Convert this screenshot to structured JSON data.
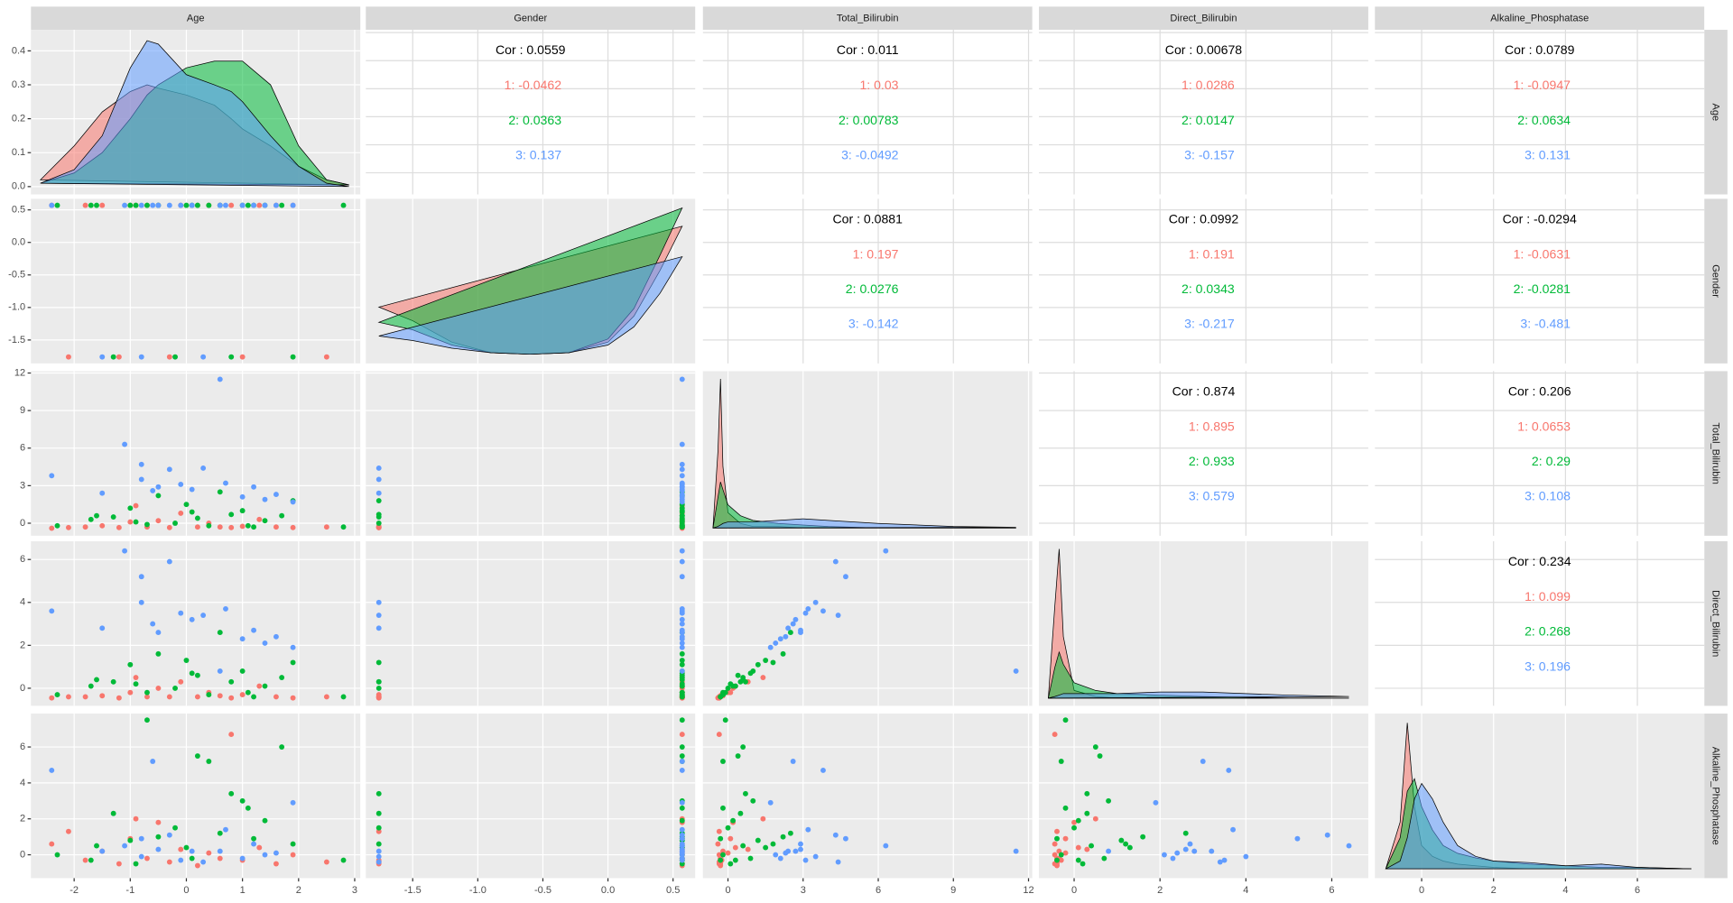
{
  "chart_data": {
    "type": "pairs",
    "variables": [
      {
        "name": "Age",
        "lim": [
          -2.77,
          3.1
        ],
        "ticks": [
          -2,
          -1,
          0,
          1,
          2,
          3
        ]
      },
      {
        "name": "Gender",
        "lim": [
          -1.86,
          0.67
        ],
        "ticks": [
          -1.5,
          {
            "value": -1,
            "label": "-1.0"
          },
          -0.5,
          {
            "value": 0,
            "label": "0.0"
          },
          0.5
        ]
      },
      {
        "name": "Total_Bilirubin",
        "lim": [
          -1.0,
          12.15
        ],
        "ticks": [
          0,
          3,
          6,
          9,
          12
        ]
      },
      {
        "name": "Direct_Bilirubin",
        "lim": [
          -0.82,
          6.85
        ],
        "ticks": [
          0,
          2,
          4,
          6
        ]
      },
      {
        "name": "Alkaline_Phosphatase",
        "lim": [
          -1.3,
          7.86
        ],
        "ticks": [
          0,
          2,
          4,
          6
        ]
      }
    ],
    "groups": [
      {
        "name": "1",
        "color": "#F8766D"
      },
      {
        "name": "2",
        "color": "#00BA38"
      },
      {
        "name": "3",
        "color": "#619CFF"
      }
    ],
    "densities": [
      {
        "x": [
          -2.6,
          -2,
          -1.5,
          -1,
          -0.7,
          -0.5,
          0,
          0.5,
          0.8,
          1,
          1.5,
          2,
          2.5,
          2.9
        ],
        "ylim": [
          -0.023,
          0.462
        ],
        "yticks": [
          {
            "value": 0,
            "label": "0.0"
          },
          0.1,
          0.2,
          0.3,
          0.4
        ],
        "series": [
          {
            "name": "1",
            "values": [
              0.02,
              0.12,
              0.22,
              0.28,
              0.3,
              0.29,
              0.27,
              0.24,
              0.2,
              0.17,
              0.12,
              0.06,
              0.02,
              0.005
            ]
          },
          {
            "name": "2",
            "values": [
              0.01,
              0.04,
              0.1,
              0.2,
              0.27,
              0.3,
              0.35,
              0.37,
              0.37,
              0.37,
              0.3,
              0.12,
              0.02,
              0.005
            ]
          },
          {
            "name": "3",
            "values": [
              0.01,
              0.05,
              0.15,
              0.35,
              0.43,
              0.42,
              0.33,
              0.3,
              0.28,
              0.25,
              0.15,
              0.06,
              0.01,
              0.0
            ]
          }
        ]
      },
      {
        "x": [
          -1.76,
          -1.5,
          -1.2,
          -0.9,
          -0.6,
          -0.3,
          0,
          0.2,
          0.4,
          0.57
        ],
        "ylim": [
          -0.06,
          1.02
        ],
        "series": [
          {
            "name": "1",
            "values": [
              0.31,
              0.22,
              0.08,
              0.01,
              0.0,
              0.01,
              0.08,
              0.25,
              0.55,
              0.84
            ]
          },
          {
            "name": "2",
            "values": [
              0.21,
              0.16,
              0.06,
              0.01,
              0.0,
              0.01,
              0.1,
              0.3,
              0.65,
              0.96
            ]
          },
          {
            "name": "3",
            "values": [
              0.12,
              0.09,
              0.04,
              0.01,
              0.0,
              0.01,
              0.06,
              0.18,
              0.4,
              0.64
            ]
          }
        ]
      },
      {
        "x": [
          -0.6,
          -0.4,
          -0.3,
          -0.2,
          0,
          0.5,
          1,
          2,
          3,
          4,
          6,
          9,
          11.5
        ],
        "ylim": [
          -0.05,
          1.02
        ],
        "series": [
          {
            "name": "1",
            "values": [
              0,
              0.5,
              0.97,
              0.4,
              0.1,
              0.03,
              0.01,
              0.01,
              0.0,
              0,
              0,
              0,
              0
            ]
          },
          {
            "name": "2",
            "values": [
              0,
              0.2,
              0.3,
              0.25,
              0.15,
              0.08,
              0.05,
              0.03,
              0.02,
              0.01,
              0,
              0,
              0
            ]
          },
          {
            "name": "3",
            "values": [
              0,
              0.01,
              0.02,
              0.03,
              0.04,
              0.04,
              0.04,
              0.05,
              0.06,
              0.05,
              0.03,
              0.01,
              0.005
            ]
          }
        ]
      },
      {
        "x": [
          -0.6,
          -0.45,
          -0.35,
          -0.25,
          0,
          0.5,
          1,
          2,
          3,
          4,
          5,
          6.4
        ],
        "ylim": [
          -0.05,
          1.02
        ],
        "series": [
          {
            "name": "1",
            "values": [
              0,
              0.6,
              0.97,
              0.4,
              0.05,
              0.01,
              0,
              0,
              0,
              0,
              0,
              0
            ]
          },
          {
            "name": "2",
            "values": [
              0,
              0.2,
              0.3,
              0.22,
              0.1,
              0.05,
              0.03,
              0.02,
              0.01,
              0.005,
              0,
              0
            ]
          },
          {
            "name": "3",
            "values": [
              0,
              0.01,
              0.02,
              0.03,
              0.03,
              0.03,
              0.03,
              0.04,
              0.04,
              0.03,
              0.02,
              0.01
            ]
          }
        ]
      },
      {
        "x": [
          -1.0,
          -0.6,
          -0.4,
          -0.2,
          0,
          0.3,
          0.6,
          1,
          1.5,
          2,
          3,
          4,
          5,
          6,
          7.5
        ],
        "ylim": [
          -0.06,
          1.0
        ],
        "series": [
          {
            "name": "1",
            "values": [
              0,
              0.3,
              0.94,
              0.4,
              0.15,
              0.08,
              0.05,
              0.03,
              0.02,
              0.01,
              0,
              0,
              0,
              0,
              0
            ]
          },
          {
            "name": "2",
            "values": [
              0,
              0.2,
              0.5,
              0.58,
              0.4,
              0.25,
              0.15,
              0.1,
              0.07,
              0.05,
              0.03,
              0.02,
              0.01,
              0.01,
              0
            ]
          },
          {
            "name": "3",
            "values": [
              0,
              0.05,
              0.2,
              0.45,
              0.55,
              0.45,
              0.3,
              0.15,
              0.08,
              0.05,
              0.04,
              0.02,
              0.03,
              0.01,
              0
            ]
          }
        ]
      }
    ],
    "correlations": [
      {
        "x": "Gender",
        "y": "Age",
        "overall": 0.0559,
        "overall_label": "Cor : 0.0559",
        "by_group": [
          -0.0462,
          0.0363,
          0.137
        ],
        "by_group_labels": [
          "1: -0.0462",
          "2: 0.0363",
          "3: 0.137"
        ]
      },
      {
        "x": "Total_Bilirubin",
        "y": "Age",
        "overall": 0.011,
        "overall_label": "Cor : 0.011",
        "by_group": [
          0.03,
          0.00783,
          -0.0492
        ],
        "by_group_labels": [
          "1: 0.03",
          "2: 0.00783",
          "3: -0.0492"
        ]
      },
      {
        "x": "Direct_Bilirubin",
        "y": "Age",
        "overall": 0.00678,
        "overall_label": "Cor : 0.00678",
        "by_group": [
          0.0286,
          0.0147,
          -0.157
        ],
        "by_group_labels": [
          "1: 0.0286",
          "2: 0.0147",
          "3: -0.157"
        ]
      },
      {
        "x": "Alkaline_Phosphatase",
        "y": "Age",
        "overall": 0.0789,
        "overall_label": "Cor : 0.0789",
        "by_group": [
          -0.0947,
          0.0634,
          0.131
        ],
        "by_group_labels": [
          "1: -0.0947",
          "2: 0.0634",
          "3: 0.131"
        ]
      },
      {
        "x": "Total_Bilirubin",
        "y": "Gender",
        "overall": 0.0881,
        "overall_label": "Cor : 0.0881",
        "by_group": [
          0.197,
          0.0276,
          -0.142
        ],
        "by_group_labels": [
          "1: 0.197",
          "2: 0.0276",
          "3: -0.142"
        ]
      },
      {
        "x": "Direct_Bilirubin",
        "y": "Gender",
        "overall": 0.0992,
        "overall_label": "Cor : 0.0992",
        "by_group": [
          0.191,
          0.0343,
          -0.217
        ],
        "by_group_labels": [
          "1: 0.191",
          "2: 0.0343",
          "3: -0.217"
        ]
      },
      {
        "x": "Alkaline_Phosphatase",
        "y": "Gender",
        "overall": -0.0294,
        "overall_label": "Cor : -0.0294",
        "by_group": [
          -0.0631,
          -0.0281,
          -0.481
        ],
        "by_group_labels": [
          "1: -0.0631",
          "2: -0.0281",
          "3: -0.481"
        ]
      },
      {
        "x": "Direct_Bilirubin",
        "y": "Total_Bilirubin",
        "overall": 0.874,
        "overall_label": "Cor : 0.874",
        "by_group": [
          0.895,
          0.933,
          0.579
        ],
        "by_group_labels": [
          "1: 0.895",
          "2: 0.933",
          "3: 0.579"
        ]
      },
      {
        "x": "Alkaline_Phosphatase",
        "y": "Total_Bilirubin",
        "overall": 0.206,
        "overall_label": "Cor : 0.206",
        "by_group": [
          0.0653,
          0.29,
          0.108
        ],
        "by_group_labels": [
          "1: 0.0653",
          "2: 0.29",
          "3: 0.108"
        ]
      },
      {
        "x": "Alkaline_Phosphatase",
        "y": "Direct_Bilirubin",
        "overall": 0.234,
        "overall_label": "Cor : 0.234",
        "by_group": [
          0.099,
          0.268,
          0.196
        ],
        "by_group_labels": [
          "1: 0.099",
          "2: 0.268",
          "3: 0.196"
        ]
      }
    ],
    "observations": {
      "group": [
        "1",
        "1",
        "1",
        "1",
        "1",
        "1",
        "1",
        "1",
        "1",
        "1",
        "1",
        "1",
        "1",
        "1",
        "1",
        "1",
        "1",
        "1",
        "1",
        "1",
        "2",
        "2",
        "2",
        "2",
        "2",
        "2",
        "2",
        "2",
        "2",
        "2",
        "2",
        "2",
        "2",
        "2",
        "2",
        "2",
        "2",
        "2",
        "2",
        "2",
        "2",
        "2",
        "3",
        "3",
        "3",
        "3",
        "3",
        "3",
        "3",
        "3",
        "3",
        "3",
        "3",
        "3",
        "3",
        "3",
        "3",
        "3",
        "3",
        "3"
      ],
      "Age": [
        -2.4,
        -2.1,
        -1.8,
        -1.5,
        -1.2,
        -1.0,
        -0.7,
        -0.5,
        -0.3,
        -0.1,
        0.2,
        0.4,
        0.8,
        1.0,
        1.3,
        1.6,
        1.9,
        2.5,
        -0.9,
        0.6,
        -2.3,
        -1.7,
        -1.3,
        -1.0,
        -0.7,
        -0.5,
        -0.2,
        0.0,
        0.2,
        0.4,
        0.6,
        0.8,
        1.0,
        1.2,
        1.4,
        1.7,
        1.9,
        2.8,
        -0.9,
        0.1,
        1.1,
        -1.6,
        -2.4,
        -1.5,
        -1.1,
        -0.8,
        -0.8,
        -0.5,
        -0.3,
        -0.1,
        0.1,
        0.3,
        0.6,
        0.7,
        1.0,
        1.2,
        1.4,
        1.6,
        1.9,
        -0.6
      ],
      "Gender": [
        0.57,
        -1.76,
        0.57,
        0.57,
        -1.76,
        0.57,
        0.57,
        0.57,
        -1.76,
        0.57,
        0.57,
        0.57,
        0.57,
        -1.76,
        0.57,
        0.57,
        0.57,
        -1.76,
        0.57,
        0.57,
        0.57,
        0.57,
        -1.76,
        0.57,
        0.57,
        0.57,
        -1.76,
        0.57,
        0.57,
        0.57,
        0.57,
        -1.76,
        0.57,
        0.57,
        0.57,
        0.57,
        -1.76,
        0.57,
        0.57,
        0.57,
        0.57,
        0.57,
        0.57,
        -1.76,
        0.57,
        0.57,
        -1.76,
        0.57,
        0.57,
        0.57,
        0.57,
        -1.76,
        0.57,
        0.57,
        0.57,
        0.57,
        0.57,
        0.57,
        0.57,
        0.57
      ],
      "Total_Bilirubin": [
        -0.4,
        -0.35,
        -0.3,
        -0.2,
        -0.35,
        0.1,
        -0.3,
        0.2,
        -0.35,
        0.8,
        -0.3,
        0.0,
        -0.35,
        -0.25,
        0.3,
        -0.3,
        -0.35,
        -0.3,
        1.4,
        -0.3,
        -0.2,
        0.3,
        0.5,
        1.2,
        -0.1,
        2.2,
        0.0,
        1.5,
        0.4,
        -0.2,
        2.5,
        0.7,
        1.0,
        -0.3,
        0.2,
        0.6,
        1.8,
        -0.3,
        0.1,
        0.9,
        -0.2,
        0.6,
        3.8,
        2.4,
        6.3,
        4.7,
        3.5,
        2.9,
        4.3,
        3.1,
        2.7,
        4.4,
        11.5,
        3.2,
        2.1,
        2.9,
        1.9,
        2.3,
        1.7,
        2.6
      ],
      "Direct_Bilirubin": [
        -0.45,
        -0.4,
        -0.4,
        -0.35,
        -0.45,
        -0.2,
        -0.4,
        0.0,
        -0.4,
        0.3,
        -0.4,
        -0.2,
        -0.45,
        -0.3,
        0.1,
        -0.4,
        -0.45,
        -0.4,
        0.5,
        -0.35,
        -0.3,
        0.1,
        0.3,
        1.1,
        -0.2,
        1.6,
        0.0,
        1.3,
        0.6,
        -0.3,
        2.6,
        0.3,
        0.8,
        -0.4,
        0.1,
        0.5,
        1.2,
        -0.4,
        0.2,
        0.7,
        -0.2,
        0.4,
        3.6,
        2.8,
        6.4,
        5.2,
        4.0,
        2.6,
        5.9,
        3.5,
        3.2,
        3.4,
        0.8,
        3.7,
        2.3,
        2.7,
        2.1,
        2.4,
        1.9,
        3.0
      ],
      "Alkaline_Phosphatase": [
        0.6,
        1.3,
        -0.3,
        0.2,
        -0.5,
        0.9,
        -0.2,
        1.8,
        -0.4,
        0.3,
        -0.6,
        0.1,
        6.7,
        -0.3,
        0.4,
        -0.5,
        0.0,
        -0.4,
        2.0,
        -0.2,
        0.0,
        -0.3,
        2.3,
        0.8,
        7.5,
        1.0,
        1.5,
        0.4,
        5.5,
        5.2,
        1.2,
        3.4,
        3.0,
        0.9,
        1.9,
        6.0,
        0.6,
        -0.3,
        -0.5,
        -0.2,
        2.6,
        0.5,
        4.7,
        0.2,
        0.5,
        0.9,
        -0.1,
        0.3,
        1.1,
        -0.3,
        0.2,
        -0.4,
        0.2,
        1.4,
        -0.2,
        0.6,
        0.0,
        0.1,
        2.9,
        5.2
      ]
    }
  }
}
